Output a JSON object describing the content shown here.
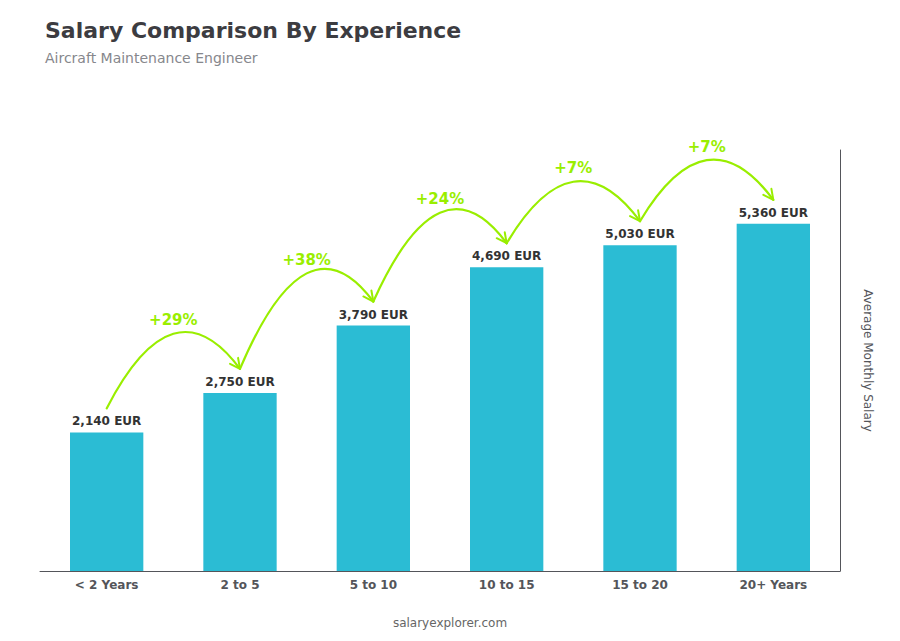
{
  "chart_data": {
    "type": "bar",
    "title": "Salary Comparison By Experience",
    "subtitle": "Aircraft Maintenance Engineer",
    "categories": [
      "< 2 Years",
      "2 to 5",
      "5 to 10",
      "10 to 15",
      "15 to 20",
      "20+ Years"
    ],
    "values": [
      2140,
      2750,
      3790,
      4690,
      5030,
      5360
    ],
    "value_labels": [
      "2,140 EUR",
      "2,750 EUR",
      "3,790 EUR",
      "4,690 EUR",
      "5,030 EUR",
      "5,360 EUR"
    ],
    "data_labels": true,
    "color": "#2bbcd4",
    "ylabel": "Average Monthly Salary",
    "ylim": [
      0,
      6500
    ],
    "yticks": [],
    "tick_labels": "x",
    "grid": false,
    "annotations": [
      {
        "from": "< 2 Years",
        "to": "2 to 5",
        "text": "+29%",
        "color": "#99ee00"
      },
      {
        "from": "2 to 5",
        "to": "5 to 10",
        "text": "+38%",
        "color": "#99ee00"
      },
      {
        "from": "5 to 10",
        "to": "10 to 15",
        "text": "+24%",
        "color": "#99ee00"
      },
      {
        "from": "10 to 15",
        "to": "15 to 20",
        "text": "+7%",
        "color": "#99ee00"
      },
      {
        "from": "15 to 20",
        "to": "20+ Years",
        "text": "+7%",
        "color": "#99ee00"
      }
    ],
    "watermark": "salaryexplorer.com"
  }
}
